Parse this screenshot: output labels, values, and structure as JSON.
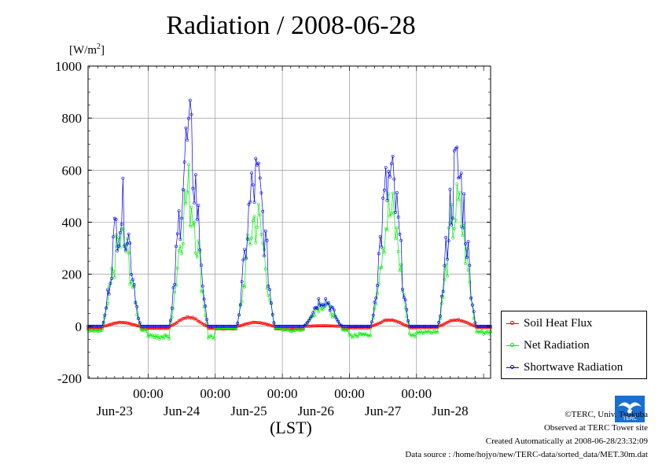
{
  "chart_data": {
    "type": "line",
    "title": "Radiation / 2008-06-28",
    "unit_label": "[W/m2]",
    "xlabel": "(LST)",
    "ylim": [
      -200,
      1000
    ],
    "yticks": [
      "-200",
      "0",
      "200",
      "400",
      "600",
      "800",
      "1000"
    ],
    "xlim_hours": [
      0,
      144
    ],
    "time_labels": [
      "00:00",
      "00:00",
      "00:00",
      "00:00",
      "00:00",
      "00:00"
    ],
    "date_labels": [
      "Jun-23",
      "Jun-24",
      "Jun-25",
      "Jun-26",
      "Jun-27",
      "Jun-28"
    ],
    "grid": true,
    "legend_position": "right",
    "series": [
      {
        "name": "Soil Heat Flux",
        "color": "#ff0000",
        "days": [
          {
            "peak": 15,
            "night": -8
          },
          {
            "peak": 35,
            "night": -8
          },
          {
            "peak": 15,
            "night": -10
          },
          {
            "peak": 2,
            "night": -10
          },
          {
            "peak": 25,
            "night": -6
          },
          {
            "peak": 25,
            "night": -5
          }
        ]
      },
      {
        "name": "Net Radiation",
        "color": "#00ee00",
        "days": [
          {
            "peak": 420,
            "night": -20
          },
          {
            "peak": 650,
            "night": -50
          },
          {
            "peak": 530,
            "night": -10
          },
          {
            "peak": 110,
            "night": -20
          },
          {
            "peak": 560,
            "night": -45
          },
          {
            "peak": 570,
            "night": -30
          }
        ]
      },
      {
        "name": "Shortwave Radiation",
        "color": "#0000ff",
        "days": [
          {
            "peak": 575,
            "night": 0
          },
          {
            "peak": 890,
            "night": 0
          },
          {
            "peak": 705,
            "night": 0
          },
          {
            "peak": 135,
            "night": 0
          },
          {
            "peak": 710,
            "night": 0
          },
          {
            "peak": 755,
            "night": 0
          }
        ]
      }
    ]
  },
  "credits": {
    "copyright": "©TERC, Univ. Tsukuba",
    "observed": "Observed at TERC Tower site",
    "created": "Created Automatically at 2008-06-28/23:32:09",
    "source": "Data source : /home/hojyo/new/TERC-data/sorted_data/MET.30m.dat"
  },
  "logo_text": "TERC"
}
